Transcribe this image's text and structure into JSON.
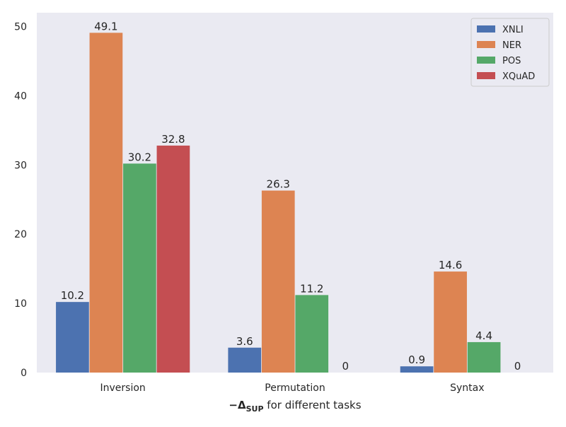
{
  "chart_data": {
    "type": "bar",
    "categories": [
      "Inversion",
      "Permutation",
      "Syntax"
    ],
    "series": [
      {
        "name": "XNLI",
        "color": "#4c72b0",
        "values": [
          10.2,
          3.6,
          0.9
        ]
      },
      {
        "name": "NER",
        "color": "#dd8452",
        "values": [
          49.1,
          26.3,
          14.6
        ]
      },
      {
        "name": "POS",
        "color": "#55a868",
        "values": [
          30.2,
          11.2,
          4.4
        ]
      },
      {
        "name": "XQuAD",
        "color": "#c44e52",
        "values": [
          32.8,
          0,
          0
        ]
      }
    ],
    "data_labels": [
      [
        "10.2",
        "3.6",
        "0.9"
      ],
      [
        "49.1",
        "26.3",
        "14.6"
      ],
      [
        "30.2",
        "11.2",
        "4.4"
      ],
      [
        "32.8",
        "0",
        "0"
      ]
    ],
    "xlabel_symbol": "−Δ",
    "xlabel_subscript": "SUP",
    "xlabel_rest": " for different tasks",
    "ylabel": "",
    "title": "",
    "ylim": [
      0,
      52
    ],
    "yticks": [
      0,
      10,
      20,
      30,
      40,
      50
    ],
    "grid": false,
    "legend_position": "top-right",
    "background_color": "#eaeaf2"
  }
}
